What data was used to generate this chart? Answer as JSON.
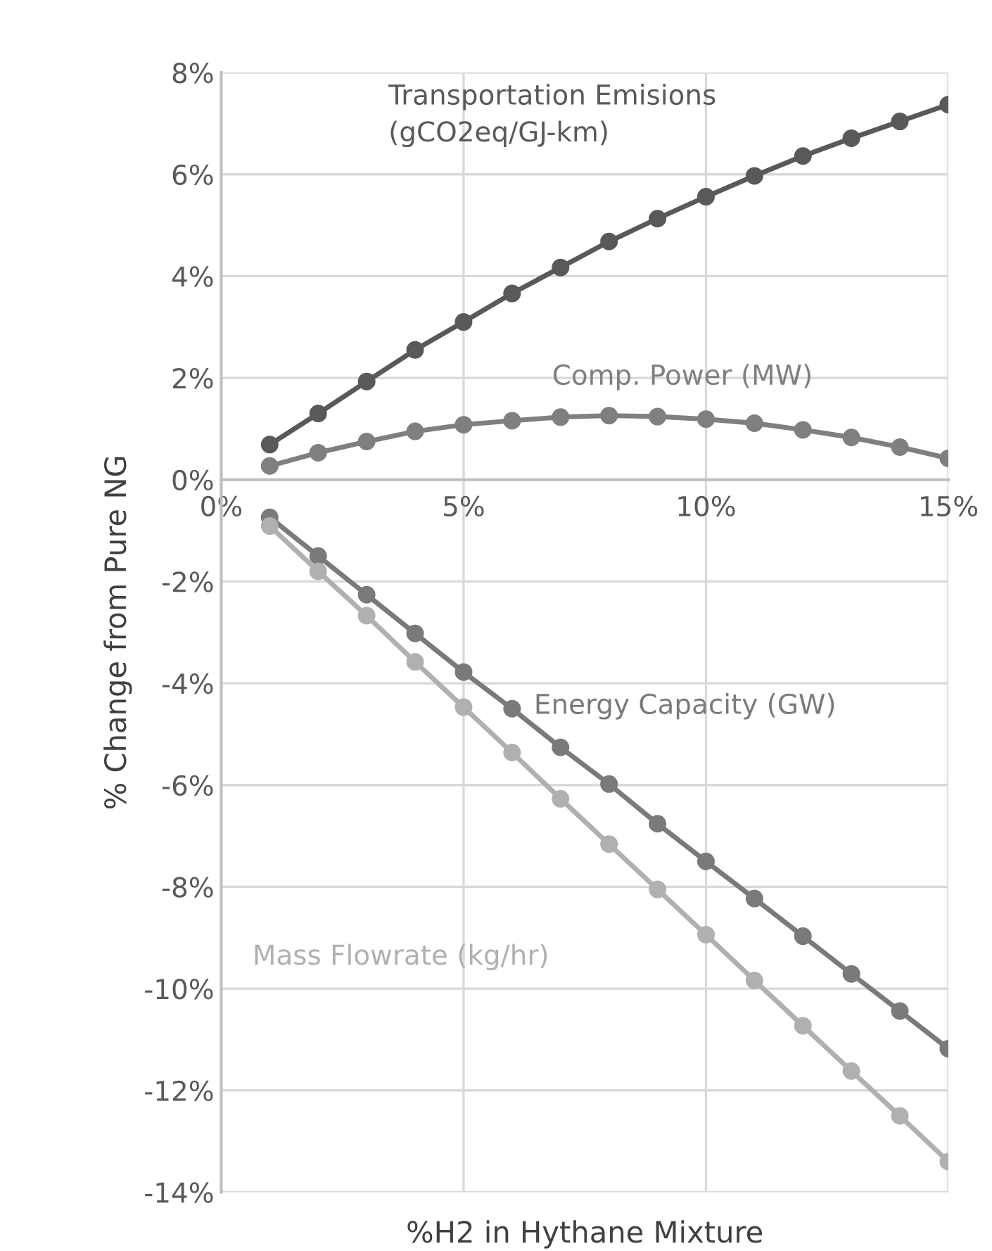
{
  "chart_data": {
    "type": "line",
    "xlabel": "%H2 in Hythane Mixture",
    "ylabel": "% Change from Pure NG",
    "x": [
      1,
      2,
      3,
      4,
      5,
      6,
      7,
      8,
      9,
      10,
      11,
      12,
      13,
      14,
      15
    ],
    "series": [
      {
        "name": "Transportation Emisions\n(gCO2eq/GJ-km)",
        "color": "#595959",
        "values": [
          0.69,
          1.3,
          1.93,
          2.55,
          3.1,
          3.66,
          4.17,
          4.68,
          5.13,
          5.56,
          5.97,
          6.36,
          6.71,
          7.04,
          7.37
        ]
      },
      {
        "name": "Comp. Power (MW)",
        "color": "#7f7f7f",
        "values": [
          0.27,
          0.53,
          0.75,
          0.95,
          1.08,
          1.16,
          1.23,
          1.26,
          1.24,
          1.19,
          1.11,
          0.98,
          0.83,
          0.64,
          0.42
        ]
      },
      {
        "name": "Energy Capacity (GW)",
        "color": "#7a7a7a",
        "values": [
          -0.74,
          -1.5,
          -2.26,
          -3.02,
          -3.78,
          -4.5,
          -5.26,
          -5.98,
          -6.76,
          -7.5,
          -8.23,
          -8.97,
          -9.71,
          -10.44,
          -11.18
        ]
      },
      {
        "name": "Mass Flowrate (kg/hr)",
        "color": "#b0b0b0",
        "values": [
          -0.91,
          -1.8,
          -2.67,
          -3.58,
          -4.47,
          -5.36,
          -6.27,
          -7.16,
          -8.05,
          -8.94,
          -9.84,
          -10.73,
          -11.62,
          -12.5,
          -13.4
        ]
      }
    ],
    "xlim": [
      0,
      15
    ],
    "xticks": [
      {
        "value": 0,
        "label": "0%"
      },
      {
        "value": 5,
        "label": "5%"
      },
      {
        "value": 10,
        "label": "10%"
      },
      {
        "value": 15,
        "label": "15%"
      }
    ],
    "ylim": [
      -14,
      8
    ],
    "yticks": [
      {
        "value": -14,
        "label": "-14%"
      },
      {
        "value": -12,
        "label": "-12%"
      },
      {
        "value": -10,
        "label": "-10%"
      },
      {
        "value": -8,
        "label": "-8%"
      },
      {
        "value": -6,
        "label": "-6%"
      },
      {
        "value": -4,
        "label": "-4%"
      },
      {
        "value": -2,
        "label": "-2%"
      },
      {
        "value": 0,
        "label": "0%"
      },
      {
        "value": 2,
        "label": "2%"
      },
      {
        "value": 4,
        "label": "4%"
      },
      {
        "value": 6,
        "label": "6%"
      },
      {
        "value": 8,
        "label": "8%"
      }
    ],
    "grid": true,
    "marker": "circle",
    "line_style": "solid",
    "legend": false
  }
}
